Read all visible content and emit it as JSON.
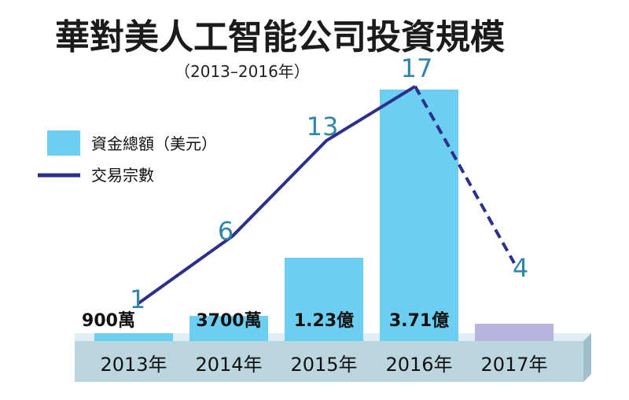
{
  "title": "華對美人工智能公司投資規模",
  "subtitle": "（2013–2016年）",
  "legend": {
    "bar_label": "資金總額（美元）",
    "line_label": "交易宗數"
  },
  "colors": {
    "bar": "#6ccff2",
    "bar_2017": "#b8b3dc",
    "line": "#2d2f8c",
    "count_text": "#2f86a8",
    "base_front": "#bcd6e0",
    "base_top": "#dfeef3",
    "base_side": "#9fbfcb"
  },
  "chart_data": {
    "type": "bar+line",
    "categories": [
      "2013年",
      "2014年",
      "2015年",
      "2016年",
      "2017年"
    ],
    "funding_labels": [
      "900萬",
      "3700萬",
      "1.23億",
      "3.71億",
      ""
    ],
    "funding_usd": [
      9000000,
      37000000,
      123000000,
      371000000,
      null
    ],
    "deal_counts": [
      1,
      6,
      13,
      17,
      4
    ],
    "line_dashed_from_index": 3
  }
}
